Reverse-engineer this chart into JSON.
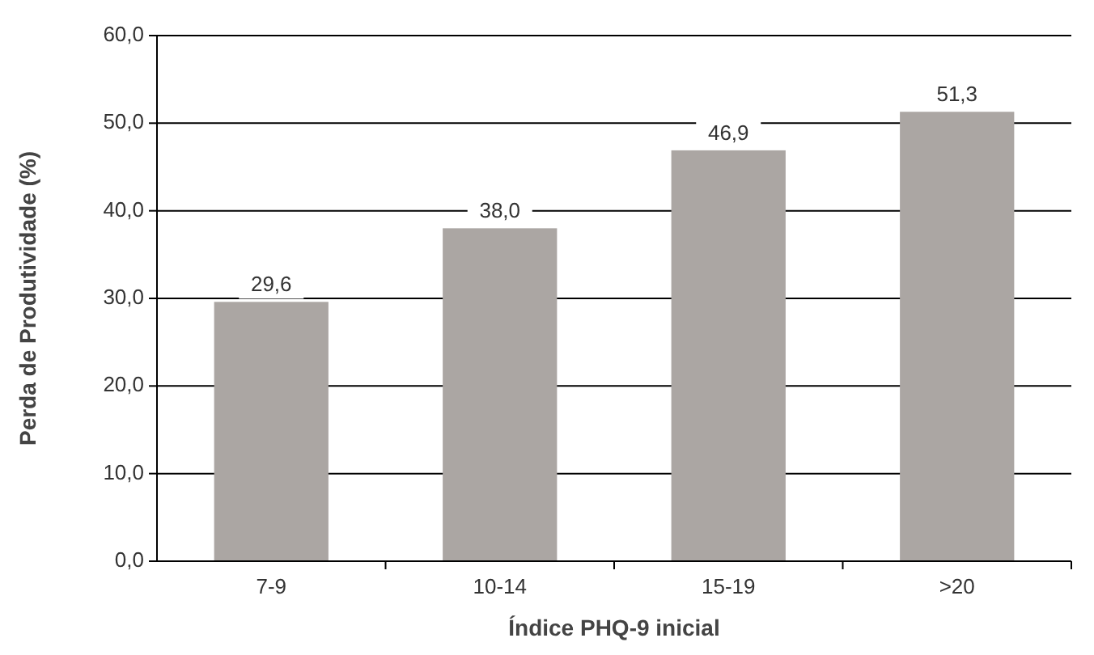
{
  "chart_data": {
    "type": "bar",
    "categories": [
      "7-9",
      "10-14",
      "15-19",
      ">20"
    ],
    "values": [
      29.6,
      38.0,
      46.9,
      51.3
    ],
    "value_labels": [
      "29,6",
      "38,0",
      "46,9",
      "51,3"
    ],
    "color": "#aba6a3",
    "xlabel": "Índice PHQ-9 inicial",
    "ylabel": "Perda de Produtividade (%)",
    "ylim": [
      0,
      60
    ],
    "yticks": [
      {
        "value": 0,
        "label": "0,0"
      },
      {
        "value": 10,
        "label": "10,0"
      },
      {
        "value": 20,
        "label": "20,0"
      },
      {
        "value": 30,
        "label": "30,0"
      },
      {
        "value": 40,
        "label": "40,0"
      },
      {
        "value": 50,
        "label": "50,0"
      },
      {
        "value": 60,
        "label": "60,0"
      }
    ],
    "grid": "y"
  }
}
